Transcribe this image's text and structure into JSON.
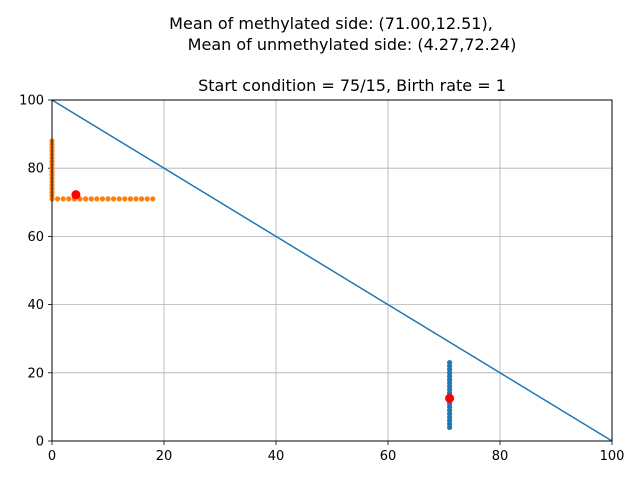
{
  "chart_data": {
    "type": "scatter",
    "title": {
      "line1": "Mean of methylated side: (71.00,12.51),",
      "line2": "Mean of unmethylated side: (4.27,72.24)",
      "line3": "Start condition = 75/15, Birth rate = 1"
    },
    "xlabel": "",
    "ylabel": "",
    "xlim": [
      0,
      100
    ],
    "ylim": [
      0,
      100
    ],
    "xticks": [
      0,
      20,
      40,
      60,
      80,
      100
    ],
    "yticks": [
      0,
      20,
      40,
      60,
      80,
      100
    ],
    "grid": true,
    "colors": {
      "line": "#1f77b4",
      "methylated": "#1f77b4",
      "unmethylated": "#ff7f0e",
      "means": "#ff0000"
    },
    "line": {
      "x": [
        0,
        100
      ],
      "y": [
        100,
        0
      ]
    },
    "methylated_points": {
      "x": [
        71,
        71,
        71,
        71,
        71,
        71,
        71,
        71,
        71,
        71,
        71,
        71,
        71,
        71,
        71,
        71,
        71,
        71,
        71,
        71
      ],
      "y": [
        4,
        5,
        6,
        7,
        8,
        9,
        10,
        11,
        12,
        13,
        14,
        15,
        16,
        17,
        18,
        19,
        20,
        21,
        22,
        23
      ]
    },
    "unmethylated_points": {
      "x": [
        0,
        0,
        0,
        0,
        0,
        0,
        0,
        0,
        0,
        0,
        0,
        0,
        0,
        0,
        0,
        0,
        0,
        0,
        1,
        2,
        3,
        4,
        5,
        6,
        7,
        8,
        9,
        10,
        11,
        12,
        13,
        14,
        15,
        16,
        17,
        18
      ],
      "y": [
        71,
        72,
        73,
        74,
        75,
        76,
        77,
        78,
        79,
        80,
        81,
        82,
        83,
        84,
        85,
        86,
        87,
        88,
        71,
        71,
        71,
        71,
        71,
        71,
        71,
        71,
        71,
        71,
        71,
        71,
        71,
        71,
        71,
        71,
        71,
        71
      ]
    },
    "means": [
      {
        "x": 71.0,
        "y": 12.51
      },
      {
        "x": 4.27,
        "y": 72.24
      }
    ]
  }
}
